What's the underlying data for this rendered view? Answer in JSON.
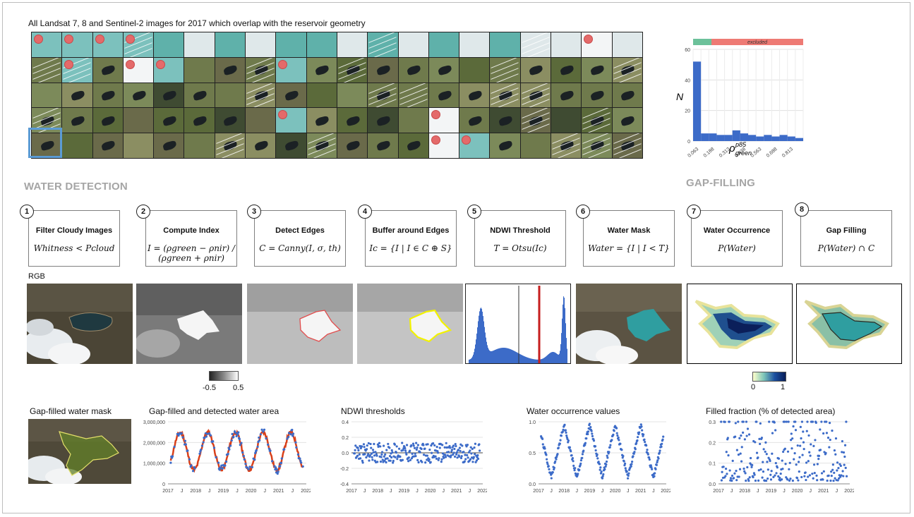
{
  "figure": {
    "grid_title": "All Landsat 7, 8 and Sentinel-2 images for 2017 which overlap with the reservoir geometry",
    "section_water_detection": "WATER DETECTION",
    "section_gap_filling": "GAP-FILLING",
    "rgb_label": "RGB",
    "cloudy_flags": [
      [
        1,
        1,
        1,
        1,
        0,
        0,
        0,
        0,
        0,
        0,
        0,
        0,
        0,
        0,
        0,
        0,
        0,
        0,
        1,
        0
      ],
      [
        0,
        1,
        0,
        1,
        1,
        0,
        0,
        0,
        1,
        0,
        0,
        0,
        0,
        0,
        0,
        0,
        0,
        0,
        0,
        0
      ],
      [
        0,
        0,
        0,
        0,
        0,
        0,
        0,
        0,
        0,
        0,
        0,
        0,
        0,
        0,
        0,
        0,
        0,
        0,
        0,
        0
      ],
      [
        0,
        0,
        0,
        0,
        0,
        0,
        0,
        0,
        1,
        0,
        0,
        0,
        0,
        1,
        0,
        0,
        0,
        0,
        0,
        0
      ],
      [
        0,
        0,
        0,
        0,
        0,
        0,
        0,
        0,
        0,
        0,
        0,
        0,
        0,
        1,
        1,
        0,
        0,
        0,
        0,
        0
      ]
    ]
  },
  "top_histogram": {
    "bar_label_excluded": "excluded",
    "ylabel": "N",
    "xlabel_base": "ρ",
    "xlabel_sup": "p85",
    "xlabel_sub": "green",
    "yticks": [
      "0",
      "20",
      "40",
      "60"
    ],
    "xticks": [
      "0.063",
      "0.188",
      "0.313",
      "0.438",
      "0.563",
      "0.688",
      "0.813"
    ],
    "colors": {
      "included": "#6cc19a",
      "excluded": "#ee7a74",
      "bars": "#3c6bc8"
    }
  },
  "steps": [
    {
      "num": "1",
      "title": "Filter Cloudy Images",
      "formula": "Whitness < Pcloud"
    },
    {
      "num": "2",
      "title": "Compute Index",
      "formula": "I = (ρgreen − ρnir) / (ρgreen + ρnir)"
    },
    {
      "num": "3",
      "title": "Detect Edges",
      "formula": "C = Canny(I, σ, th)"
    },
    {
      "num": "4",
      "title": "Buffer around Edges",
      "formula": "Ic = {I | I ∈ C ⊕ S}"
    },
    {
      "num": "5",
      "title": "NDWI Threshold",
      "formula": "T = Otsu(Ic)"
    },
    {
      "num": "6",
      "title": "Water Mask",
      "formula": "Water = {I | I < T}"
    },
    {
      "num": "7",
      "title": "Water Occurrence",
      "formula": "P(Water)"
    },
    {
      "num": "8",
      "title": "Gap Filling",
      "formula": "P(Water) ∩ C"
    }
  ],
  "colorbars": {
    "ndwi": {
      "min": "-0.5",
      "max": "0.5"
    },
    "occurrence": {
      "min": "0",
      "max": "1"
    }
  },
  "bottom": {
    "gap_filled_label": "Gap-filled water mask",
    "plots": [
      {
        "title": "Gap-filled and detected water area",
        "yticks": [
          "3,000,000",
          "2,000,000",
          "1,000,000",
          "0"
        ]
      },
      {
        "title": "NDWI thresholds",
        "yticks": [
          "0.4",
          "0.2",
          "0.0",
          "-0.2",
          "-0.4"
        ]
      },
      {
        "title": "Water occurrence values",
        "yticks": [
          "1.0",
          "0.5",
          "0.0"
        ]
      },
      {
        "title": "Filled fraction (% of detected area)",
        "yticks": [
          "0.3",
          "0.2",
          "0.1",
          "0.0"
        ]
      }
    ],
    "xticks": [
      "2017",
      "J",
      "2018",
      "J",
      "2019",
      "J",
      "2020",
      "J",
      "2021",
      "J",
      "2022"
    ],
    "colors": {
      "detected": "#3c6bc8",
      "filled": "#d9401a"
    }
  },
  "chart_data": [
    {
      "type": "bar",
      "title": "",
      "xlabel": "ρ green p85",
      "ylabel": "N",
      "categories": [
        "0.063",
        "0.125",
        "0.188",
        "0.250",
        "0.313",
        "0.375",
        "0.438",
        "0.500",
        "0.563",
        "0.625",
        "0.688",
        "0.750",
        "0.813",
        "0.875"
      ],
      "values": [
        52,
        5,
        5,
        4,
        4,
        7,
        5,
        4,
        3,
        4,
        3,
        4,
        3,
        2
      ],
      "ylim": [
        0,
        60
      ]
    }
  ]
}
